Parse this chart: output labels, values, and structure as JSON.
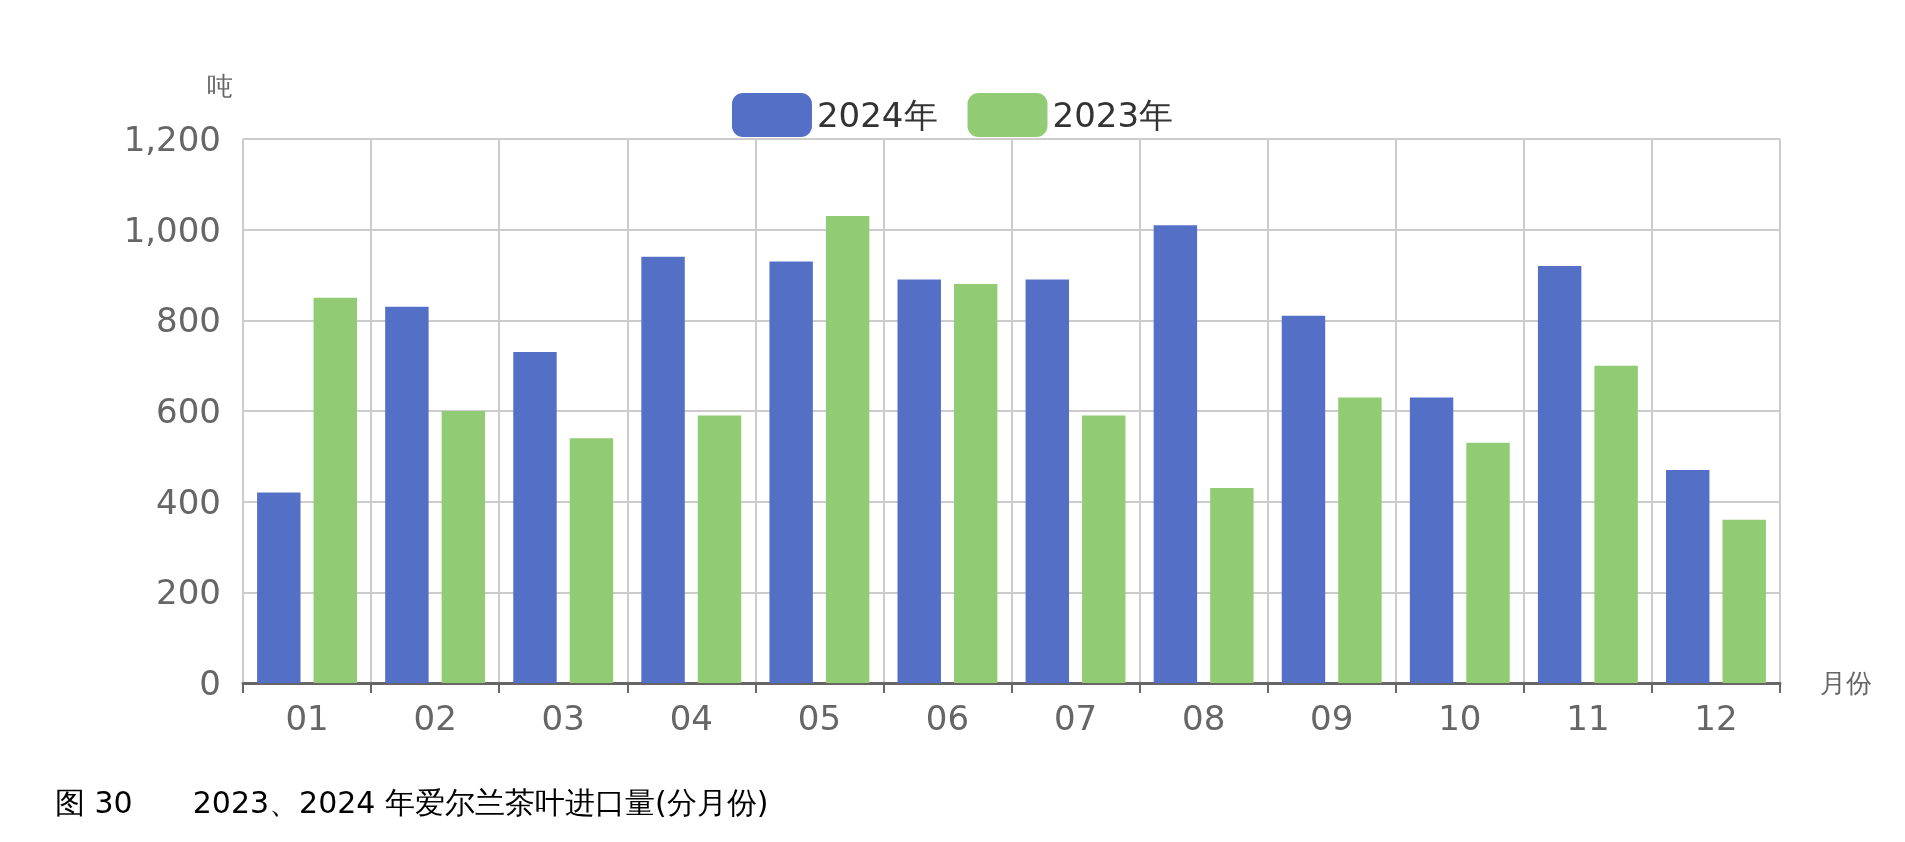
{
  "chart_data": {
    "type": "bar",
    "title": "图 30　　2023、2024 年爱尔兰茶叶进口量(分月份)",
    "ylabel": "吨",
    "xlabel": "月份",
    "categories": [
      "01",
      "02",
      "03",
      "04",
      "05",
      "06",
      "07",
      "08",
      "09",
      "10",
      "11",
      "12"
    ],
    "series": [
      {
        "name": "2024年",
        "color": "#5470c6",
        "values": [
          420,
          830,
          730,
          940,
          930,
          890,
          890,
          1010,
          810,
          630,
          920,
          470
        ]
      },
      {
        "name": "2023年",
        "color": "#91cc75",
        "values": [
          850,
          600,
          540,
          590,
          1030,
          880,
          590,
          430,
          630,
          530,
          700,
          360
        ]
      }
    ],
    "ylim": [
      0,
      1200
    ],
    "yticks": [
      0,
      200,
      400,
      600,
      800,
      {
        "value": 1000,
        "label": "1,000"
      },
      {
        "value": 1200,
        "label": "1,200"
      }
    ],
    "grid": true,
    "legend": "top"
  }
}
